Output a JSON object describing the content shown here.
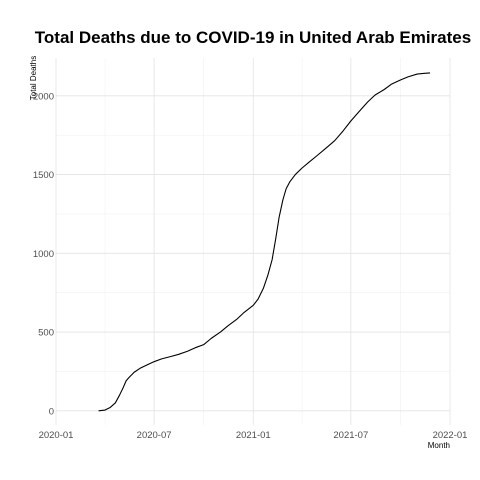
{
  "chart_data": {
    "type": "line",
    "title": "Total Deaths due to COVID-19 in United Arab Emirates",
    "xlabel": "Month",
    "ylabel": "Total Deaths",
    "xlim": [
      "2020-01-01",
      "2022-01-01"
    ],
    "ylim": [
      -90,
      2240
    ],
    "x_ticks": [
      "2020-01-01",
      "2020-07-01",
      "2021-01-01",
      "2021-07-01",
      "2022-01-01"
    ],
    "x_tick_labels": [
      "2020-01",
      "2020-07",
      "2021-01",
      "2021-07",
      "2022-01"
    ],
    "y_ticks": [
      0,
      500,
      1000,
      1500,
      2000
    ],
    "y_tick_labels": [
      "0",
      "500",
      "1000",
      "1500",
      "2000"
    ],
    "grid": true,
    "series": [
      {
        "color": "#000000",
        "points": [
          [
            "2020-03-20",
            0
          ],
          [
            "2020-04-01",
            5
          ],
          [
            "2020-04-10",
            20
          ],
          [
            "2020-04-20",
            50
          ],
          [
            "2020-04-28",
            100
          ],
          [
            "2020-05-05",
            150
          ],
          [
            "2020-05-10",
            190
          ],
          [
            "2020-05-15",
            210
          ],
          [
            "2020-05-25",
            245
          ],
          [
            "2020-06-05",
            270
          ],
          [
            "2020-06-20",
            295
          ],
          [
            "2020-07-01",
            312
          ],
          [
            "2020-07-15",
            330
          ],
          [
            "2020-08-01",
            345
          ],
          [
            "2020-08-15",
            358
          ],
          [
            "2020-09-01",
            378
          ],
          [
            "2020-09-15",
            400
          ],
          [
            "2020-10-01",
            420
          ],
          [
            "2020-10-15",
            460
          ],
          [
            "2020-11-01",
            500
          ],
          [
            "2020-11-15",
            540
          ],
          [
            "2020-12-01",
            580
          ],
          [
            "2020-12-15",
            625
          ],
          [
            "2021-01-01",
            670
          ],
          [
            "2021-01-10",
            710
          ],
          [
            "2021-01-20",
            780
          ],
          [
            "2021-01-28",
            860
          ],
          [
            "2021-02-05",
            960
          ],
          [
            "2021-02-12",
            1100
          ],
          [
            "2021-02-18",
            1230
          ],
          [
            "2021-02-25",
            1340
          ],
          [
            "2021-03-03",
            1410
          ],
          [
            "2021-03-10",
            1455
          ],
          [
            "2021-03-20",
            1500
          ],
          [
            "2021-04-01",
            1540
          ],
          [
            "2021-04-15",
            1580
          ],
          [
            "2021-05-01",
            1625
          ],
          [
            "2021-05-15",
            1665
          ],
          [
            "2021-06-01",
            1715
          ],
          [
            "2021-06-15",
            1770
          ],
          [
            "2021-07-01",
            1840
          ],
          [
            "2021-07-15",
            1895
          ],
          [
            "2021-08-01",
            1960
          ],
          [
            "2021-08-15",
            2005
          ],
          [
            "2021-09-01",
            2040
          ],
          [
            "2021-09-15",
            2075
          ],
          [
            "2021-10-01",
            2100
          ],
          [
            "2021-10-15",
            2120
          ],
          [
            "2021-11-01",
            2138
          ],
          [
            "2021-11-15",
            2143
          ],
          [
            "2021-11-25",
            2145
          ]
        ]
      }
    ]
  }
}
